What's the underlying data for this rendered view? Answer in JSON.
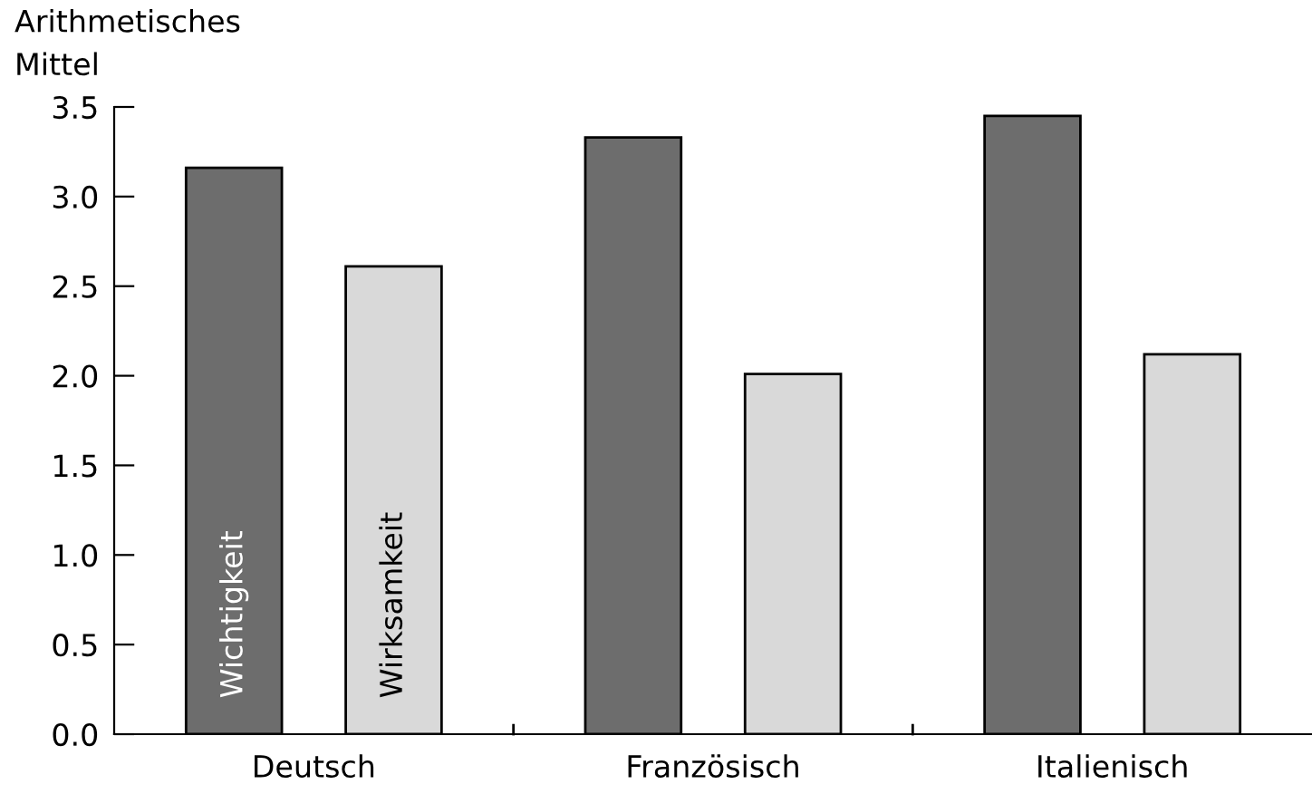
{
  "chart_data": {
    "type": "bar",
    "ylabel": "Arithmetisches\nMittel",
    "categories": [
      "Deutsch",
      "Französisch",
      "Italienisch"
    ],
    "series": [
      {
        "name": "Wichtigkeit",
        "color": "#6d6d6d",
        "values": [
          3.16,
          3.33,
          3.45
        ]
      },
      {
        "name": "Wirksamkeit",
        "color": "#d9d9d9",
        "values": [
          2.61,
          2.01,
          2.12
        ]
      }
    ],
    "ylim": [
      0,
      3.5
    ],
    "yticks": [
      {
        "value": 0,
        "label": "0.0"
      },
      {
        "value": 0.5,
        "label": "0.5"
      },
      {
        "value": 1,
        "label": "1.0"
      },
      {
        "value": 1.5,
        "label": "1.5"
      },
      {
        "value": 2,
        "label": "2.0"
      },
      {
        "value": 2.5,
        "label": "2.5"
      },
      {
        "value": 3,
        "label": "3.0"
      },
      {
        "value": 3.5,
        "label": "3.5"
      }
    ],
    "grid": false,
    "legend": false
  }
}
